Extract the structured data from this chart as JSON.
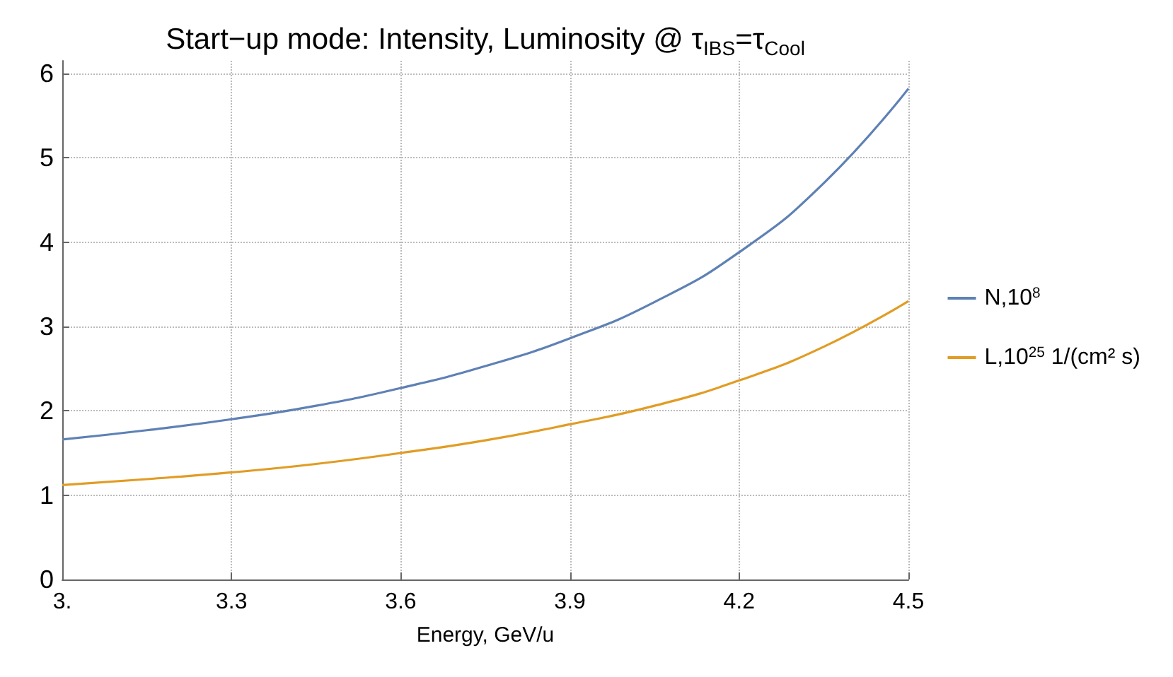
{
  "chart_data": {
    "type": "line",
    "title": "Start−up mode: Intensity, Luminosity @ τ$_{IBS}$=τ$_{Cool}$",
    "xlabel": "Energy, GeV/u",
    "x": [
      3.0,
      3.15,
      3.3,
      3.45,
      3.6,
      3.75,
      3.9,
      4.05,
      4.2,
      4.35,
      4.5
    ],
    "series": [
      {
        "name": "N,10$^{8}$",
        "color": "#5e81b5",
        "values": [
          1.66,
          1.77,
          1.9,
          2.06,
          2.27,
          2.53,
          2.86,
          3.29,
          3.88,
          4.7,
          5.82
        ]
      },
      {
        "name": "L,10$^{25}$ 1/(cm² s)",
        "color": "#e19c24",
        "values": [
          1.12,
          1.19,
          1.27,
          1.37,
          1.5,
          1.65,
          1.84,
          2.06,
          2.36,
          2.76,
          3.3
        ]
      }
    ],
    "xlim": [
      3,
      4.5
    ],
    "xticks": [
      {
        "value": 3,
        "label": "3."
      },
      3.3,
      3.6,
      3.9,
      4.2,
      4.5
    ],
    "ylim": [
      0,
      6.15
    ],
    "yticks": [
      0,
      1,
      2,
      3,
      4,
      5,
      6
    ],
    "grid": true,
    "legend": "right",
    "marker": "none",
    "line_style": "solid"
  }
}
